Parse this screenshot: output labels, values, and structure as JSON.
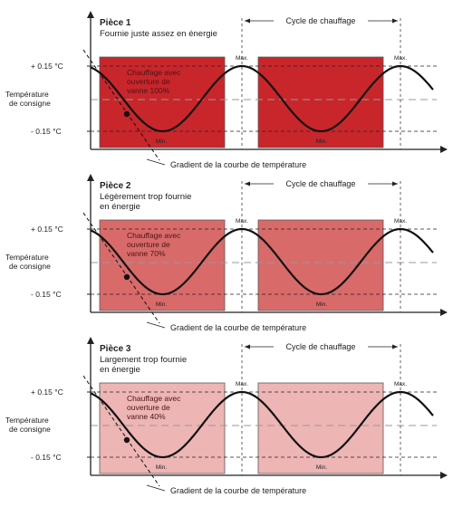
{
  "panels": [
    {
      "title": "Pièce 1",
      "subtitle": [
        "Fournie juste assez en énergie"
      ],
      "heating_label": [
        "Chauffage avec",
        "ouverture de",
        "vanne 100%"
      ],
      "valve_opening_percent": 100,
      "fill_color": "#c8262b"
    },
    {
      "title": "Pièce 2",
      "subtitle": [
        "Légèrement trop fournie",
        "en énergie"
      ],
      "heating_label": [
        "Chauffage avec",
        "ouverture de",
        "vanne 70%"
      ],
      "valve_opening_percent": 70,
      "fill_color": "#d96a6a"
    },
    {
      "title": "Pièce 3",
      "subtitle": [
        "Largement trop fournie",
        "en énergie"
      ],
      "heating_label": [
        "Chauffage avec",
        "ouverture de",
        "vanne 40%"
      ],
      "valve_opening_percent": 40,
      "fill_color": "#eeb5b5"
    }
  ],
  "labels": {
    "upper": "+ 0.15 °C",
    "setpoint": [
      "Température",
      "de consigne"
    ],
    "lower": "- 0.15 °C",
    "max": "Max.",
    "min": "Min.",
    "cycle": "Cycle de chauffage",
    "gradient": "Gradient de la courbe de température"
  },
  "colors": {
    "curve": "#111111",
    "guide": "#999999",
    "axis": "#222222"
  }
}
